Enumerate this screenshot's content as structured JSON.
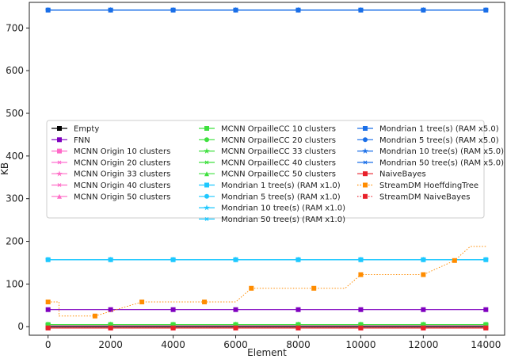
{
  "chart_data": {
    "type": "line",
    "xlabel": "Element",
    "ylabel": "KB",
    "xlim": [
      -600,
      14600
    ],
    "ylim": [
      -20,
      760
    ],
    "x_ticks": [
      0,
      2000,
      4000,
      6000,
      8000,
      10000,
      12000,
      14000
    ],
    "y_ticks": [
      0,
      100,
      200,
      300,
      400,
      500,
      600,
      700
    ],
    "grid": false,
    "legend_position": "center-left",
    "legend_columns": 3,
    "series": [
      {
        "name": "Empty",
        "color": "#000000",
        "marker": "square",
        "style": "solid",
        "x": [
          0,
          2000,
          4000,
          6000,
          8000,
          10000,
          12000,
          14000
        ],
        "y": [
          0,
          0,
          0,
          0,
          0,
          0,
          0,
          0
        ]
      },
      {
        "name": "FNN",
        "color": "#7f00bf",
        "marker": "square",
        "style": "solid",
        "x": [
          0,
          2000,
          4000,
          6000,
          8000,
          10000,
          12000,
          14000
        ],
        "y": [
          40,
          40,
          40,
          40,
          40,
          40,
          40,
          40
        ]
      },
      {
        "name": "MCNN Origin 10 clusters",
        "color": "#ff69c8",
        "marker": "square",
        "style": "solid",
        "x": [
          0,
          2000,
          4000,
          6000,
          8000,
          10000,
          12000,
          14000
        ],
        "y": [
          3,
          3,
          3,
          3,
          3,
          3,
          3,
          3
        ]
      },
      {
        "name": "MCNN Origin 20 clusters",
        "color": "#ff6fd0",
        "marker": "x",
        "style": "solid",
        "x": [
          0,
          2000,
          4000,
          6000,
          8000,
          10000,
          12000,
          14000
        ],
        "y": [
          3,
          3,
          3,
          3,
          3,
          3,
          3,
          3
        ]
      },
      {
        "name": "MCNN Origin 33 clusters",
        "color": "#ff6ec7",
        "marker": "star",
        "style": "solid",
        "x": [
          0,
          2000,
          4000,
          6000,
          8000,
          10000,
          12000,
          14000
        ],
        "y": [
          3,
          3,
          3,
          3,
          3,
          3,
          3,
          3
        ]
      },
      {
        "name": "MCNN Origin 40 clusters",
        "color": "#ff6ec7",
        "marker": "x",
        "style": "solid",
        "x": [
          0,
          2000,
          4000,
          6000,
          8000,
          10000,
          12000,
          14000
        ],
        "y": [
          3,
          3,
          3,
          3,
          3,
          3,
          3,
          3
        ]
      },
      {
        "name": "MCNN Origin 50 clusters",
        "color": "#ff6ec7",
        "marker": "triangle",
        "style": "solid",
        "x": [
          0,
          2000,
          4000,
          6000,
          8000,
          10000,
          12000,
          14000
        ],
        "y": [
          3,
          3,
          3,
          3,
          3,
          3,
          3,
          3
        ]
      },
      {
        "name": "MCNN OrpailleCC 10 clusters",
        "color": "#3ee03e",
        "marker": "square",
        "style": "solid",
        "x": [
          0,
          2000,
          4000,
          6000,
          8000,
          10000,
          12000,
          14000
        ],
        "y": [
          5,
          5,
          5,
          5,
          5,
          5,
          5,
          5
        ]
      },
      {
        "name": "MCNN OrpailleCC 20 clusters",
        "color": "#3ee03e",
        "marker": "circle",
        "style": "solid",
        "x": [
          0,
          2000,
          4000,
          6000,
          8000,
          10000,
          12000,
          14000
        ],
        "y": [
          5,
          5,
          5,
          5,
          5,
          5,
          5,
          5
        ]
      },
      {
        "name": "MCNN OrpailleCC 33 clusters",
        "color": "#3ee03e",
        "marker": "star",
        "style": "solid",
        "x": [
          0,
          2000,
          4000,
          6000,
          8000,
          10000,
          12000,
          14000
        ],
        "y": [
          5,
          5,
          5,
          5,
          5,
          5,
          5,
          5
        ]
      },
      {
        "name": "MCNN OrpailleCC 40 clusters",
        "color": "#3ee03e",
        "marker": "x",
        "style": "solid",
        "x": [
          0,
          2000,
          4000,
          6000,
          8000,
          10000,
          12000,
          14000
        ],
        "y": [
          5,
          5,
          5,
          5,
          5,
          5,
          5,
          5
        ]
      },
      {
        "name": "MCNN OrpailleCC 50 clusters",
        "color": "#3ee03e",
        "marker": "triangle",
        "style": "solid",
        "x": [
          0,
          2000,
          4000,
          6000,
          8000,
          10000,
          12000,
          14000
        ],
        "y": [
          5,
          5,
          5,
          5,
          5,
          5,
          5,
          5
        ]
      },
      {
        "name": "Mondrian 1 tree(s) (RAM x1.0)",
        "color": "#1ec8ff",
        "marker": "square",
        "style": "solid",
        "x": [
          0,
          2000,
          4000,
          6000,
          8000,
          10000,
          12000,
          14000
        ],
        "y": [
          157,
          157,
          157,
          157,
          157,
          157,
          157,
          157
        ]
      },
      {
        "name": "Mondrian 5 tree(s) (RAM x1.0)",
        "color": "#1ec8ff",
        "marker": "circle",
        "style": "solid",
        "x": [
          0,
          2000,
          4000,
          6000,
          8000,
          10000,
          12000,
          14000
        ],
        "y": [
          157,
          157,
          157,
          157,
          157,
          157,
          157,
          157
        ]
      },
      {
        "name": "Mondrian 10 tree(s) (RAM x1.0)",
        "color": "#1ec8ff",
        "marker": "star",
        "style": "solid",
        "x": [
          0,
          2000,
          4000,
          6000,
          8000,
          10000,
          12000,
          14000
        ],
        "y": [
          157,
          157,
          157,
          157,
          157,
          157,
          157,
          157
        ]
      },
      {
        "name": "Mondrian 50 tree(s) (RAM x1.0)",
        "color": "#1ec8ff",
        "marker": "x",
        "style": "solid",
        "x": [
          0,
          2000,
          4000,
          6000,
          8000,
          10000,
          12000,
          14000
        ],
        "y": [
          157,
          157,
          157,
          157,
          157,
          157,
          157,
          157
        ]
      },
      {
        "name": "Mondrian 1 tree(s) (RAM x5.0)",
        "color": "#1a6fe8",
        "marker": "square",
        "style": "solid",
        "x": [
          0,
          2000,
          4000,
          6000,
          8000,
          10000,
          12000,
          14000
        ],
        "y": [
          742,
          742,
          742,
          742,
          742,
          742,
          742,
          742
        ]
      },
      {
        "name": "Mondrian 5 tree(s) (RAM x5.0)",
        "color": "#1a6fe8",
        "marker": "circle",
        "style": "solid",
        "x": [
          0,
          2000,
          4000,
          6000,
          8000,
          10000,
          12000,
          14000
        ],
        "y": [
          742,
          742,
          742,
          742,
          742,
          742,
          742,
          742
        ]
      },
      {
        "name": "Mondrian 10 tree(s) (RAM x5.0)",
        "color": "#1a6fe8",
        "marker": "star",
        "style": "solid",
        "x": [
          0,
          2000,
          4000,
          6000,
          8000,
          10000,
          12000,
          14000
        ],
        "y": [
          742,
          742,
          742,
          742,
          742,
          742,
          742,
          742
        ]
      },
      {
        "name": "Mondrian 50 tree(s) (RAM x5.0)",
        "color": "#1a6fe8",
        "marker": "x",
        "style": "solid",
        "x": [
          0,
          2000,
          4000,
          6000,
          8000,
          10000,
          12000,
          14000
        ],
        "y": [
          742,
          742,
          742,
          742,
          742,
          742,
          742,
          742
        ]
      },
      {
        "name": "NaiveBayes",
        "color": "#e8202a",
        "marker": "square",
        "style": "solid",
        "x": [
          0,
          2000,
          4000,
          6000,
          8000,
          10000,
          12000,
          14000
        ],
        "y": [
          -3,
          -3,
          -3,
          -3,
          -3,
          -3,
          -3,
          -3
        ]
      },
      {
        "name": "StreamDM HoeffdingTree",
        "color": "#ff8c00",
        "marker": "square",
        "style": "dotted",
        "x": [
          0,
          350,
          350,
          1500,
          3000,
          4500,
          5000,
          6000,
          6500,
          8000,
          8500,
          9500,
          10000,
          11000,
          11500,
          12000,
          13000,
          13500,
          14000
        ],
        "y": [
          58,
          58,
          25,
          25,
          58,
          58,
          58,
          58,
          90,
          90,
          90,
          90,
          122,
          122,
          122,
          122,
          155,
          188,
          188
        ],
        "marker_points": [
          [
            0,
            58
          ],
          [
            1500,
            25
          ],
          [
            3000,
            58
          ],
          [
            5000,
            58
          ],
          [
            6500,
            90
          ],
          [
            8500,
            90
          ],
          [
            10000,
            122
          ],
          [
            12000,
            122
          ],
          [
            13000,
            155
          ]
        ]
      },
      {
        "name": "StreamDM NaiveBayes",
        "color": "#e8202a",
        "marker": "square",
        "style": "dotted",
        "x": [
          0,
          2000,
          4000,
          6000,
          8000,
          10000,
          12000,
          14000
        ],
        "y": [
          -3,
          -3,
          -3,
          -3,
          -3,
          -3,
          -3,
          -3
        ]
      }
    ]
  }
}
